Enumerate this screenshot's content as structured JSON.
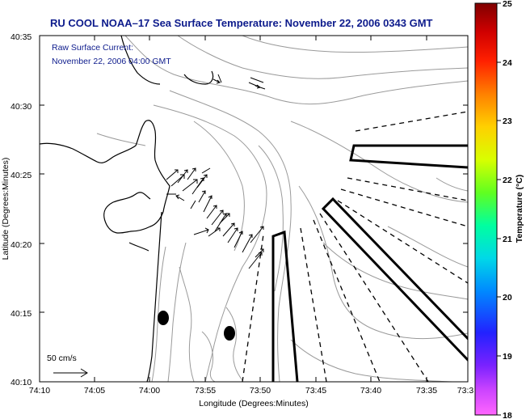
{
  "title": "RU COOL  NOAA–17  Sea Surface Temperature:  November 22, 2006 0343 GMT",
  "annotation": {
    "line1": "Raw Surface Current:",
    "line2": "November 22, 2006 04:00 GMT"
  },
  "scale_label": "50 cm/s",
  "x_axis": {
    "label": "Longitude (Degrees:Minutes)",
    "ticks": [
      "74:10",
      "74:05",
      "74:00",
      "73:55",
      "73:50",
      "73:45",
      "73:40",
      "73:35",
      "73:3"
    ]
  },
  "y_axis": {
    "label": "Latitude (Degrees:Minutes)",
    "ticks": [
      "40:35",
      "40:30",
      "40:25",
      "40:20",
      "40:15",
      "40:10"
    ]
  },
  "colorbar": {
    "label": "Temperature (°C)",
    "ticks": [
      "25",
      "24",
      "23",
      "22",
      "21",
      "20",
      "19",
      "18"
    ],
    "min": 18,
    "max": 25,
    "colors": [
      "#ff66ff",
      "#a020f0",
      "#2020ff",
      "#00a0ff",
      "#00e0e0",
      "#00ff80",
      "#a0ff00",
      "#ffff00",
      "#ffa000",
      "#ff4000",
      "#ff0000",
      "#a00000",
      "#800000"
    ]
  }
}
